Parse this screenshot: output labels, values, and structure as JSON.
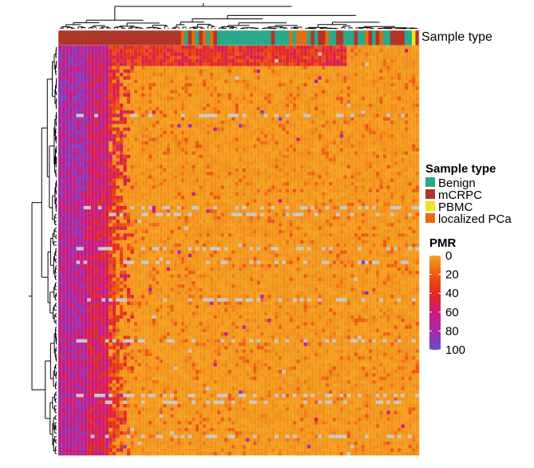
{
  "chart_data": {
    "type": "heatmap",
    "annotation_track": {
      "label": "Sample type",
      "categories": [
        {
          "name": "Benign",
          "color": "#2aa889"
        },
        {
          "name": "mCRPC",
          "color": "#b03528"
        },
        {
          "name": "PBMC",
          "color": "#f2e41c"
        },
        {
          "name": "localized PCa",
          "color": "#e56a12"
        }
      ],
      "approx_column_groups": [
        {
          "category": "mCRPC",
          "count": 32
        },
        {
          "category": "mixed (Benign / mCRPC / localized PCa)",
          "count": 13
        },
        {
          "category": "Benign",
          "count": 14
        },
        {
          "category": "mixed (Benign / mCRPC / localized PCa)",
          "count": 35
        },
        {
          "category": "mixed (Benign / mCRPC / localized PCa)",
          "count": 4
        },
        {
          "category": "PBMC",
          "count": 1
        },
        {
          "category": "mixed (Benign / mCRPC / localized PCa)",
          "count": 1
        }
      ]
    },
    "value_scale": {
      "label": "PMR",
      "ticks": [
        0,
        20,
        40,
        60,
        80,
        100
      ],
      "colors": [
        "#f4a21e",
        "#ee5a10",
        "#e32a1e",
        "#d0187a",
        "#a62aa6",
        "#6a4bd0"
      ],
      "missing_color": "#c8c8c8"
    },
    "dimensions": {
      "rows": 120,
      "columns": 100
    },
    "observed_pattern": "About the first 20 columns (mCRPC samples on the left) hold high PMR values (60-100) across most rows; a few top rows show medium values (30-60) through the middle columns; the remaining cells are near 0 PMR, with scattered missing (grey) cells along some rows.",
    "row_dendrogram": true,
    "column_dendrogram": true
  }
}
